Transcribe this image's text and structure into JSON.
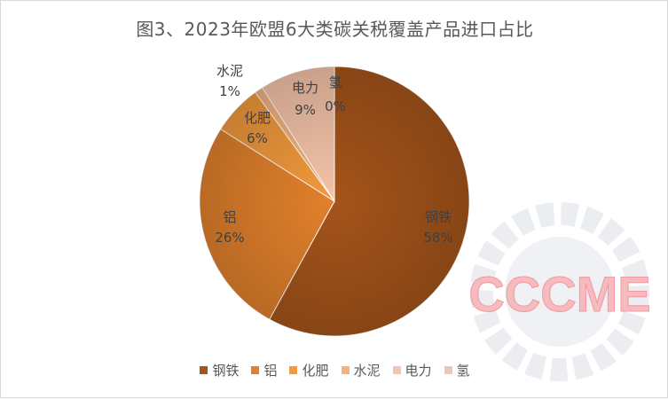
{
  "chart_data": {
    "type": "pie",
    "title": "图3、2023年欧盟6大类碳关税覆盖产品进口占比",
    "categories": [
      "钢铁",
      "铝",
      "化肥",
      "水泥",
      "电力",
      "氢"
    ],
    "values": [
      58,
      26,
      6,
      1,
      9,
      0
    ],
    "value_labels": [
      "58%",
      "26%",
      "6%",
      "1%",
      "9%",
      "0%"
    ],
    "colors": [
      "#A5541A",
      "#E2812C",
      "#F29A3C",
      "#F3B27E",
      "#F5C4A9",
      "#E8C8B8"
    ],
    "legend_position": "bottom",
    "watermark": "CCCME"
  }
}
